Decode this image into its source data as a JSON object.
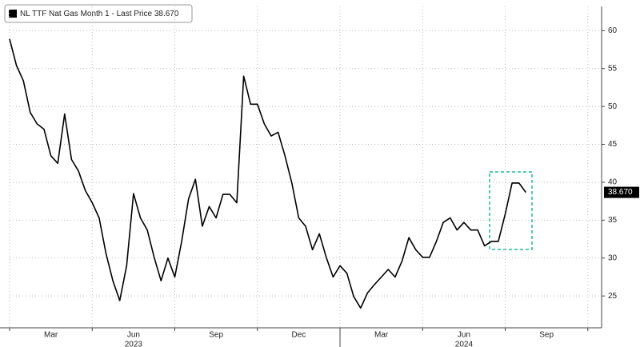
{
  "chart_data": {
    "type": "line",
    "legend": "NL TTF Nat Gas Month 1 - Last Price 38.670",
    "last_value_label": "38.670",
    "categories": [
      null,
      null,
      null,
      null,
      null,
      null,
      "Mar",
      null,
      null,
      null,
      null,
      null,
      null,
      null,
      null,
      null,
      null,
      null,
      "Jun",
      null,
      null,
      null,
      null,
      null,
      null,
      null,
      null,
      null,
      null,
      null,
      "Sep",
      null,
      null,
      null,
      null,
      null,
      null,
      null,
      null,
      null,
      null,
      null,
      "Dec",
      null,
      null,
      null,
      null,
      null,
      null,
      null,
      null,
      null,
      null,
      null,
      "Mar",
      null,
      null,
      null,
      null,
      null,
      null,
      null,
      null,
      null,
      null,
      null,
      "Jun",
      null,
      null,
      null,
      null,
      null,
      null,
      null,
      null,
      null,
      null,
      null,
      "Sep",
      null,
      null,
      null,
      null,
      null,
      null,
      null,
      null
    ],
    "years": [
      "2023",
      "2024"
    ],
    "series": [
      {
        "name": "NL TTF Nat Gas Month 1",
        "color": "#000000",
        "values": [
          58.9,
          55.4,
          53.4,
          49.2,
          47.7,
          47,
          43.5,
          42.5,
          49,
          43,
          41.5,
          38.9,
          37.3,
          35.3,
          30.6,
          27,
          24.4,
          29,
          38.5,
          35.3,
          33.7,
          30.1,
          27,
          30,
          27.5,
          32.2,
          37.8,
          40.4,
          34.2,
          36.8,
          35.3,
          38.4,
          38.4,
          37.3,
          54,
          50.3,
          50.3,
          47.7,
          46.1,
          46.6,
          43.5,
          39.9,
          35.3,
          34.2,
          31.1,
          33.2,
          30.1,
          27.5,
          29,
          28,
          24.9,
          23.4,
          25.4,
          26.5,
          27.5,
          28.5,
          27.5,
          29.6,
          32.7,
          31.1,
          30.1,
          30.1,
          32.2,
          34.7,
          35.3,
          33.7,
          34.7,
          33.7,
          33.7,
          31.6,
          32.2,
          32.2,
          35.8,
          39.9,
          39.9,
          38.67,
          null,
          null,
          null,
          null,
          null,
          null,
          null,
          null,
          null,
          null,
          null
        ]
      }
    ],
    "ylim": [
      20.8,
      63.2
    ],
    "yticks": [
      25,
      30,
      35,
      40,
      45,
      50,
      55,
      60
    ],
    "grid": true
  }
}
